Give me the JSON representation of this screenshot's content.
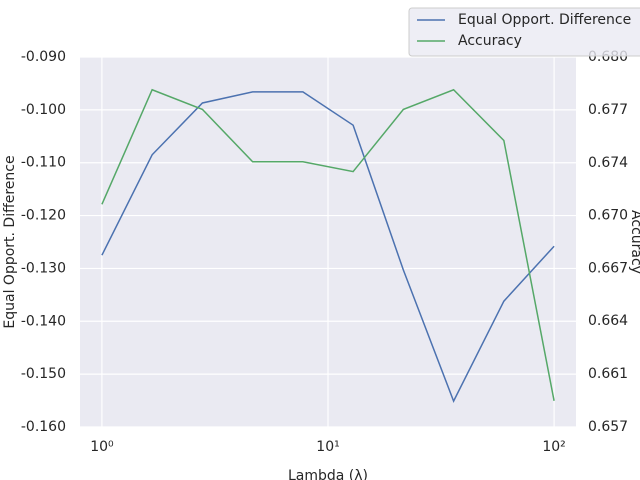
{
  "chart_data": {
    "type": "line",
    "x_label": "Lambda (λ)",
    "y_label": "Equal Opport. Difference",
    "y2_label": "Accuracy",
    "x": [
      1,
      1.668,
      2.783,
      4.642,
      7.743,
      12.915,
      21.544,
      35.938,
      59.948,
      100
    ],
    "xscale": "log",
    "xlim": [
      0.8,
      125
    ],
    "xticks": [
      {
        "value": 1,
        "label": "10⁰"
      },
      {
        "value": 10,
        "label": "10¹"
      },
      {
        "value": 100,
        "label": "10²"
      }
    ],
    "ylim": [
      -0.16,
      -0.09
    ],
    "yticks": [
      {
        "value": -0.16,
        "label": "-0.160"
      },
      {
        "value": -0.15,
        "label": "-0.150"
      },
      {
        "value": -0.14,
        "label": "-0.140"
      },
      {
        "value": -0.13,
        "label": "-0.130"
      },
      {
        "value": -0.12,
        "label": "-0.120"
      },
      {
        "value": -0.11,
        "label": "-0.110"
      },
      {
        "value": -0.1,
        "label": "-0.100"
      },
      {
        "value": -0.09,
        "label": "-0.090"
      }
    ],
    "y2lim": [
      0.6574,
      0.68
    ],
    "y2ticks": [
      {
        "value": 0.6574,
        "label": "0.657"
      },
      {
        "value": 0.66063,
        "label": "0.661"
      },
      {
        "value": 0.66386,
        "label": "0.664"
      },
      {
        "value": 0.66709,
        "label": "0.667"
      },
      {
        "value": 0.67031,
        "label": "0.670"
      },
      {
        "value": 0.67354,
        "label": "0.674"
      },
      {
        "value": 0.67677,
        "label": "0.677"
      },
      {
        "value": 0.68,
        "label": "0.680"
      }
    ],
    "grid": true,
    "legend": "upper right",
    "series": [
      {
        "name": "Equal Opport. Difference",
        "color": "#4c72b0",
        "values": [
          -0.1275,
          -0.1085,
          -0.0987,
          -0.0966,
          -0.0966,
          -0.1029,
          -0.1303,
          -0.1551,
          -0.1362,
          -0.1258
        ]
      },
      {
        "name": "Accuracy",
        "color": "#55a868",
        "axis": "y2",
        "values": [
          0.671,
          0.678,
          0.6768,
          0.6736,
          0.6736,
          0.673,
          0.6768,
          0.678,
          0.6749,
          0.659
        ]
      }
    ]
  }
}
